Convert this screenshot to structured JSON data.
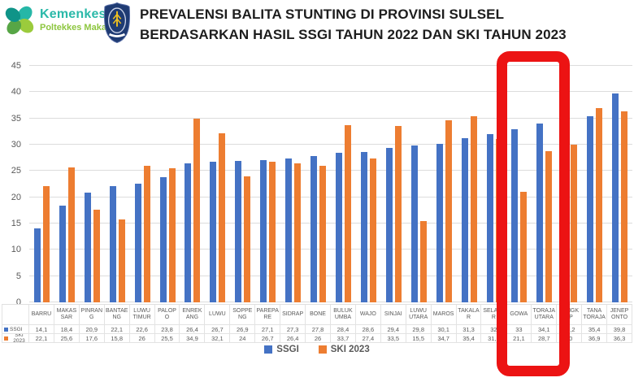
{
  "logo": {
    "org": "Kemenkes",
    "sub": "Poltekkes Makassar"
  },
  "title": {
    "line1": "PREVALENSI BALITA STUNTING DI PROVINSI SULSEL",
    "line2": "BERDASARKAN HASIL SSGI TAHUN 2022 DAN SKI TAHUN 2023"
  },
  "colors": {
    "ssgi": "#4472c4",
    "ski": "#ed7d31",
    "highlight_red": "#ec1313",
    "grid": "#dcdcdc",
    "axis_text": "#595959",
    "logo_teal": "#2bb9a9",
    "logo_green": "#8dc63f"
  },
  "chart_data": {
    "type": "bar",
    "title": "PREVALENSI BALITA STUNTING DI PROVINSI SULSEL BERDASARKAN HASIL SSGI TAHUN 2022 DAN SKI TAHUN 2023",
    "categories": [
      "BARRU",
      "MAKASSAR",
      "PINRANG",
      "BANTAENG",
      "LUWU TIMUR",
      "PALOPO",
      "ENREKANG",
      "LUWU",
      "SOPPENG",
      "PAREPARE",
      "SIDRAP",
      "BONE",
      "BULUKUMBA",
      "WAJO",
      "SINJAI",
      "LUWU UTARA",
      "MAROS",
      "TAKALAR",
      "SELAYAR",
      "GOWA",
      "TORAJA UTARA",
      "PANGKEP",
      "TANA TORAJA",
      "JENEPONTO"
    ],
    "series": [
      {
        "name": "SSGI",
        "color": "#4472c4",
        "values": [
          14.1,
          18.4,
          20.9,
          22.1,
          22.6,
          23.8,
          26.4,
          26.7,
          26.9,
          27.1,
          27.3,
          27.8,
          28.4,
          28.6,
          29.4,
          29.8,
          30.1,
          31.3,
          32,
          33,
          34.1,
          34.2,
          35.4,
          39.8
        ]
      },
      {
        "name": "SKI 2023",
        "color": "#ed7d31",
        "values": [
          22.1,
          25.6,
          17.6,
          15.8,
          26,
          25.5,
          34.9,
          32.1,
          24,
          26.7,
          26.4,
          26,
          33.7,
          27.4,
          33.5,
          15.5,
          34.7,
          35.4,
          31.1,
          21.1,
          28.7,
          30,
          36.9,
          36.3
        ]
      }
    ],
    "ylim": [
      0,
      45
    ],
    "yticks": [
      0,
      5,
      10,
      15,
      20,
      25,
      30,
      35,
      40,
      45
    ],
    "grid": true,
    "legend_position": "bottom",
    "data_table_shown": true,
    "highlighted_category": "GOWA",
    "decimal_separator": ","
  }
}
